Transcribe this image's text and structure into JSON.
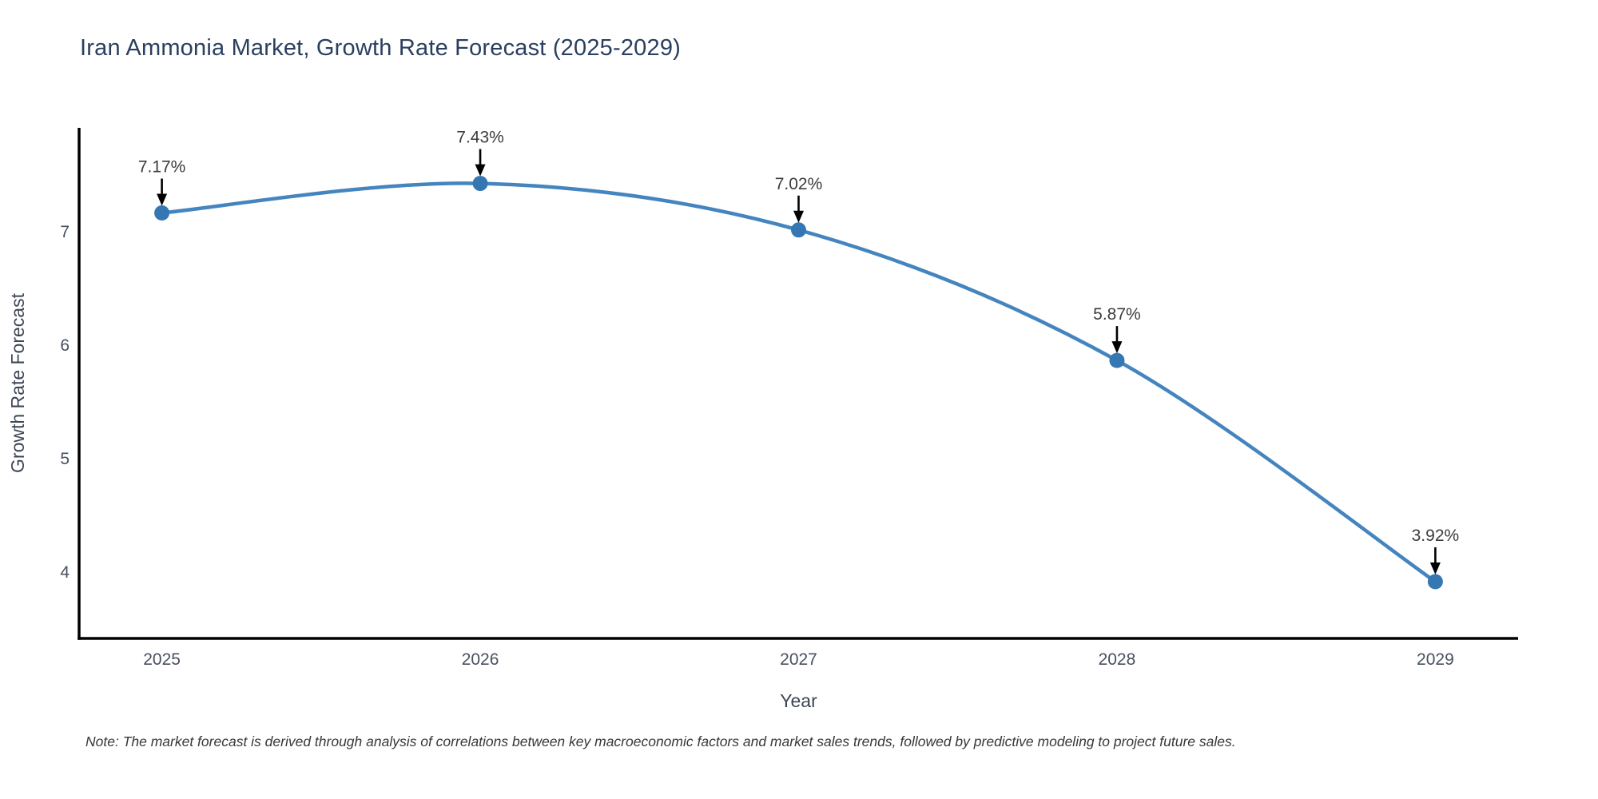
{
  "page": {
    "title": "Iran Ammonia Market, Growth Rate Forecast (2025-2029)",
    "note": "Note: The market forecast is derived through analysis of correlations between key macroeconomic factors and market sales trends, followed by predictive modeling to project future sales."
  },
  "chart_data": {
    "type": "line",
    "title": "Iran Ammonia Market, Growth Rate Forecast (2025-2029)",
    "xlabel": "Year",
    "ylabel": "Growth Rate Forecast",
    "categories": [
      2025,
      2026,
      2027,
      2028,
      2029
    ],
    "values": [
      7.17,
      7.43,
      7.02,
      5.87,
      3.92
    ],
    "point_labels": [
      "7.17%",
      "7.43%",
      "7.02%",
      "5.87%",
      "3.92%"
    ],
    "xtick_labels": [
      "2025",
      "2026",
      "2027",
      "2028",
      "2029"
    ],
    "ytick_values": [
      4,
      5,
      6,
      7
    ],
    "xlim": [
      2024.74,
      2029.26
    ],
    "ylim": [
      3.42,
      7.92
    ],
    "grid": false,
    "legend": "none",
    "line_shape": "spline",
    "annotations_have_arrows": true,
    "colors": {
      "line": "#4585bf",
      "marker": "#3477b2",
      "axis_line": "#000000",
      "arrow": "#000000",
      "annotation_text": "#3b3b3b",
      "tick_text": "#47505f",
      "axis_title_text": "#3c4654",
      "title_text": "#2a3f5f",
      "note_text": "#383838",
      "background": "#ffffff"
    }
  }
}
